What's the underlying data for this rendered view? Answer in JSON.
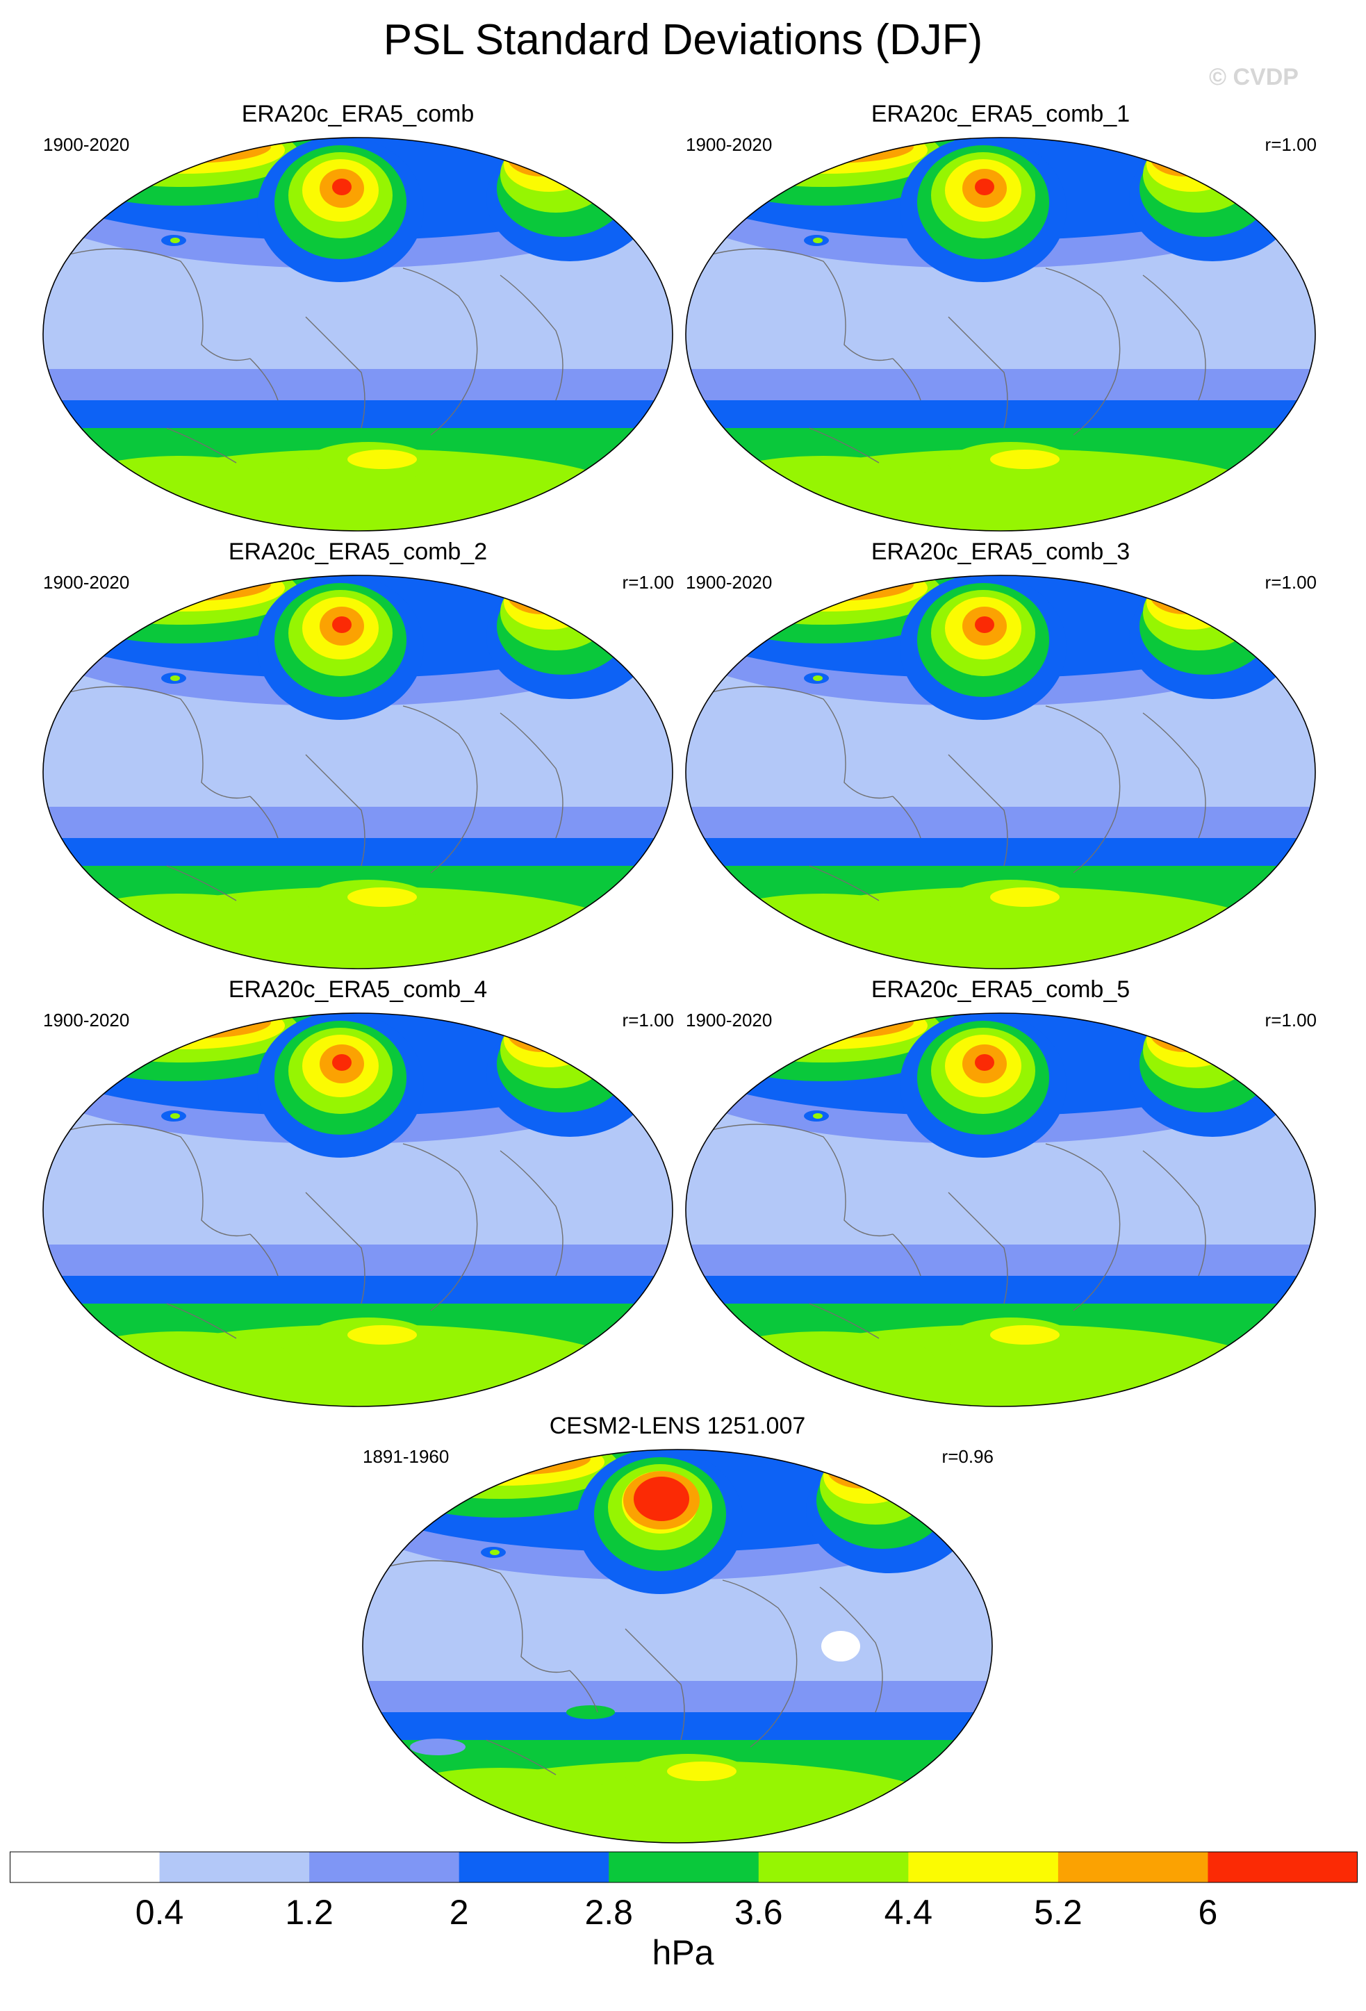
{
  "figure": {
    "title": "PSL Standard Deviations (DJF)",
    "watermark": "© CVDP"
  },
  "panels": [
    {
      "title": "ERA20c_ERA5_comb",
      "period": "1900-2020",
      "corr": ""
    },
    {
      "title": "ERA20c_ERA5_comb_1",
      "period": "1900-2020",
      "corr": "r=1.00"
    },
    {
      "title": "ERA20c_ERA5_comb_2",
      "period": "1900-2020",
      "corr": "r=1.00"
    },
    {
      "title": "ERA20c_ERA5_comb_3",
      "period": "1900-2020",
      "corr": "r=1.00"
    },
    {
      "title": "ERA20c_ERA5_comb_4",
      "period": "1900-2020",
      "corr": "r=1.00"
    },
    {
      "title": "ERA20c_ERA5_comb_5",
      "period": "1900-2020",
      "corr": "r=1.00"
    },
    {
      "title": "CESM2-LENS 1251.007",
      "period": "1891-1960",
      "corr": "r=0.96"
    }
  ],
  "colorbar": {
    "units": "hPa",
    "ticks": [
      "0.4",
      "1.2",
      "2",
      "2.8",
      "3.6",
      "4.4",
      "5.2",
      "6"
    ],
    "colors": [
      "#ffffff",
      "#b3c8f8",
      "#7f96f5",
      "#0d62f5",
      "#0ac83b",
      "#96f502",
      "#fbfb02",
      "#fba202",
      "#fb2a05"
    ]
  }
}
